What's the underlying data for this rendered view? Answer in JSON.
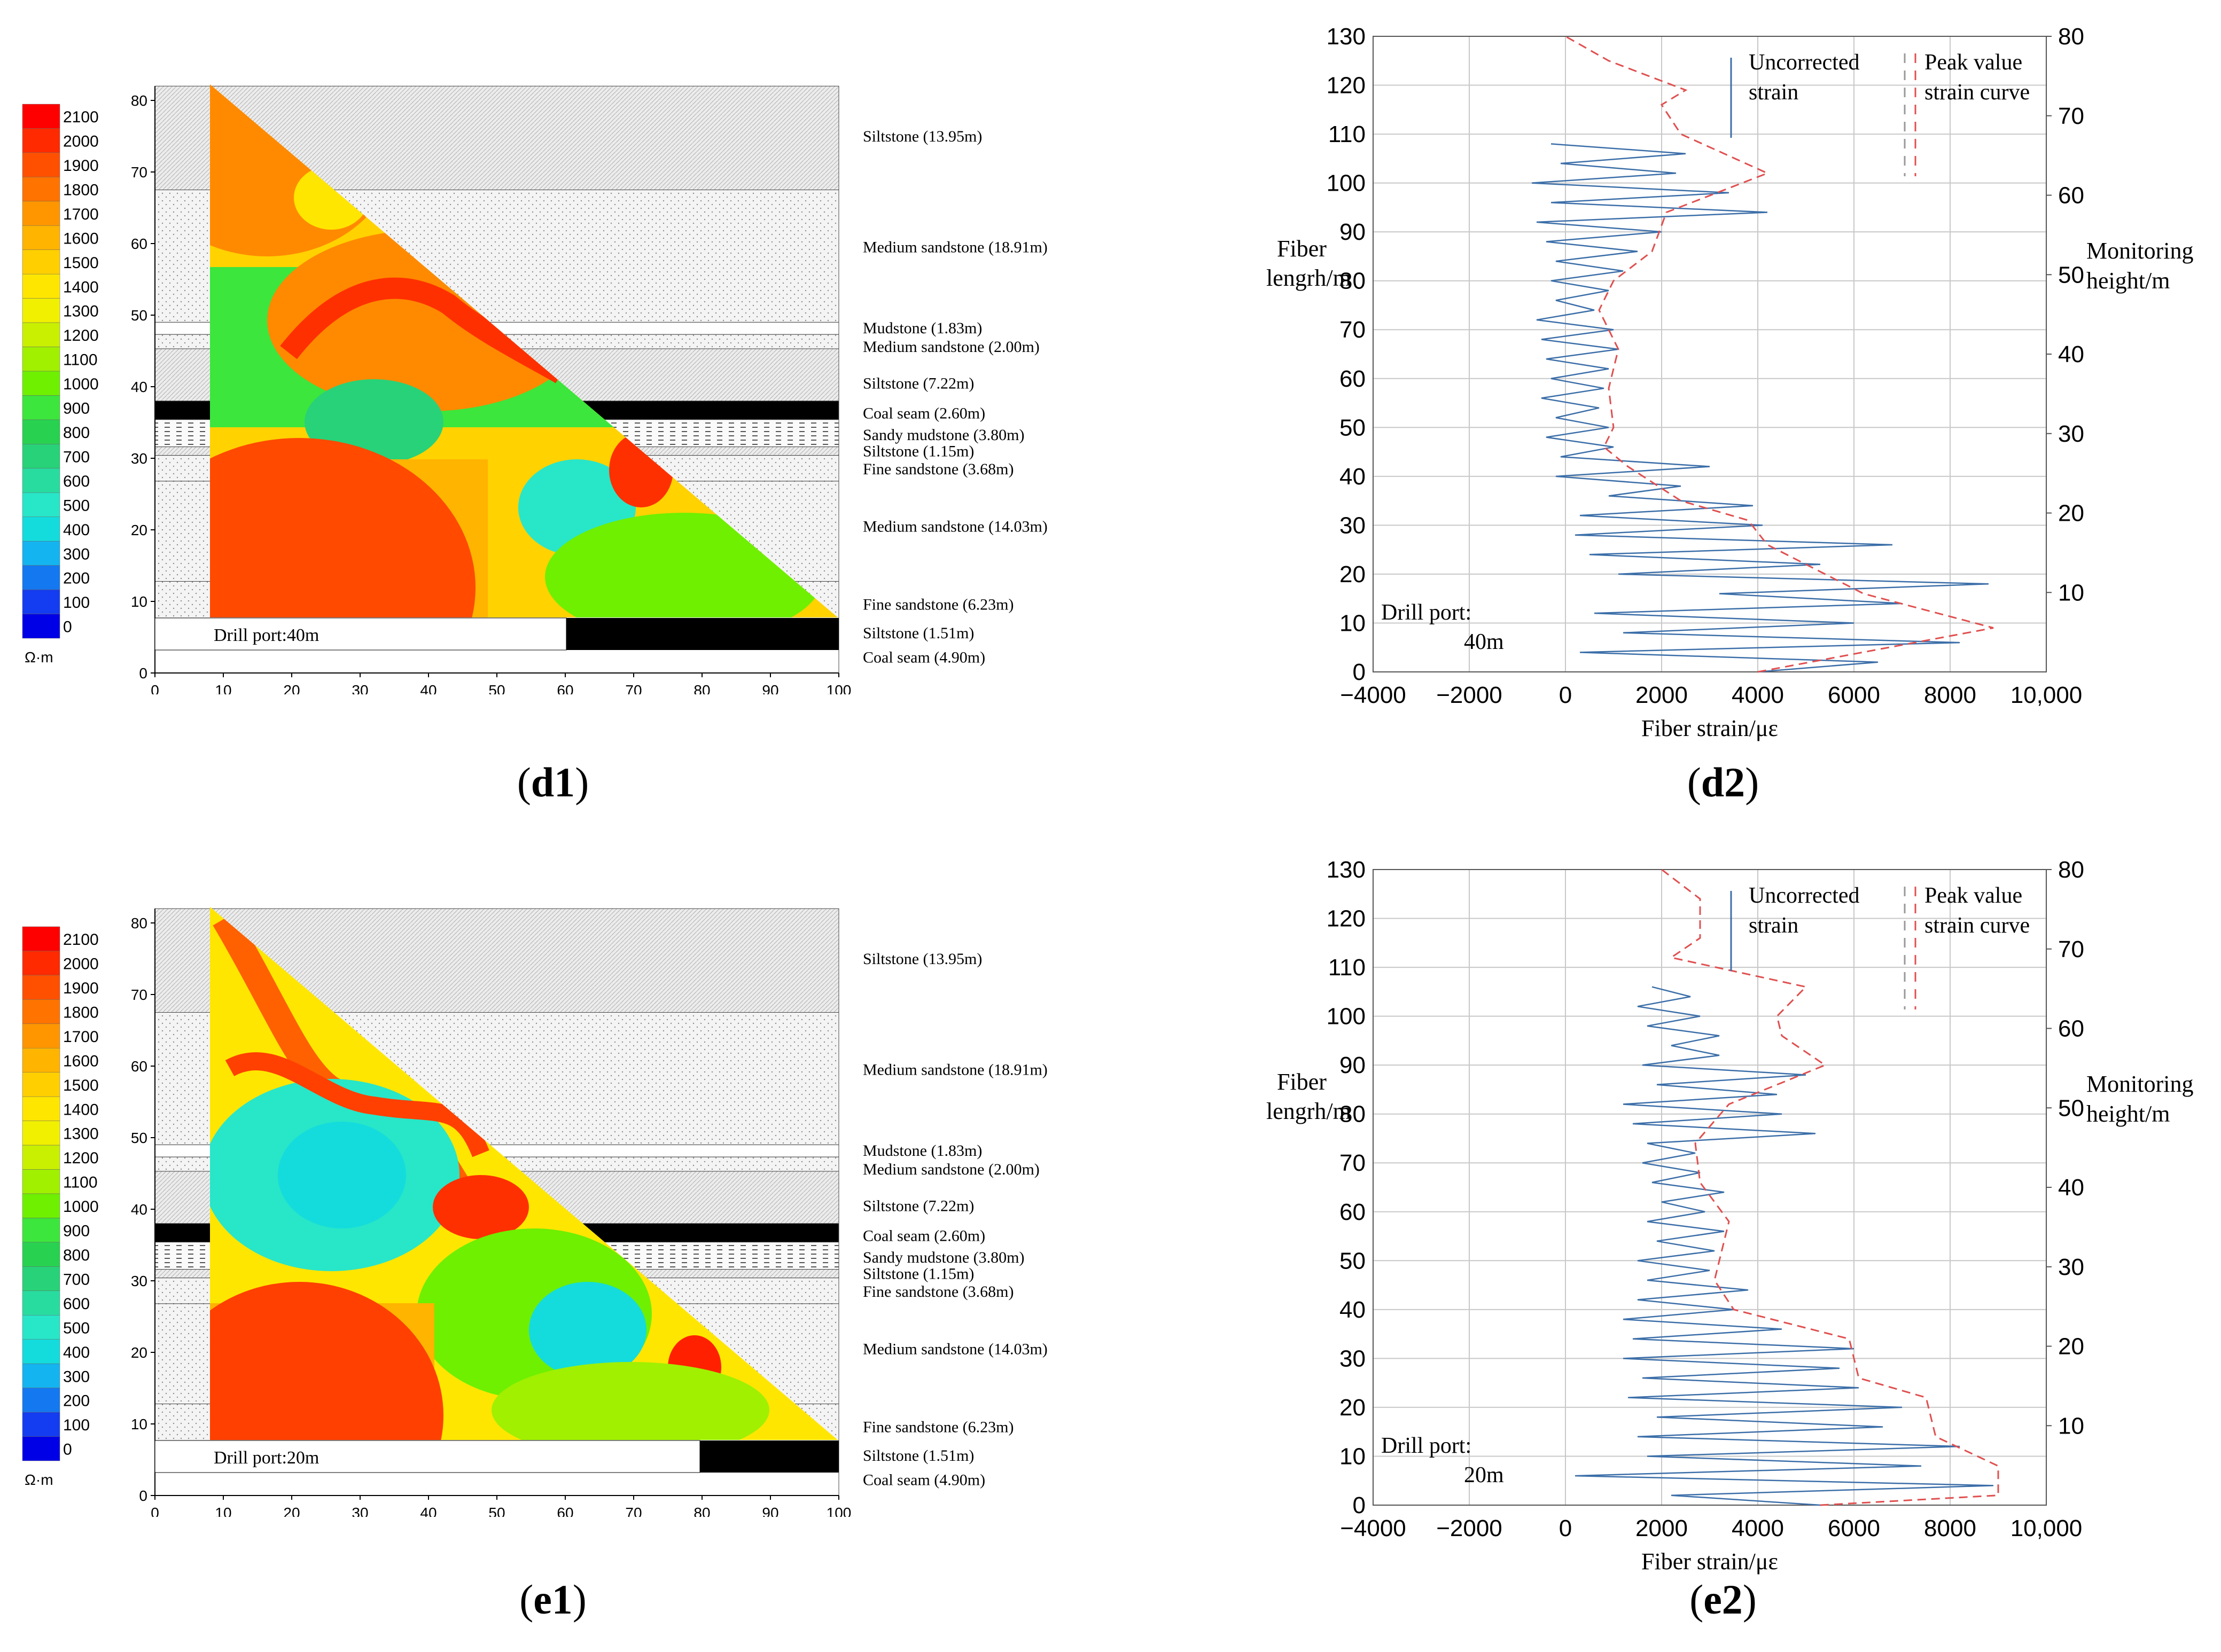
{
  "colors": {
    "strain_line": "#3b6ea8",
    "peak_line": "#e05050",
    "grid": "#c8c8c8",
    "coal": "#000000"
  },
  "captions": {
    "d1": {
      "open": "(",
      "letter": "d1",
      "close": ")"
    },
    "d2": {
      "open": "(",
      "letter": "d2",
      "close": ")"
    },
    "e1": {
      "open": "(",
      "letter": "e1",
      "close": ")"
    },
    "e2": {
      "open": "(",
      "letter": "e2",
      "close": ")"
    }
  },
  "colorbar": {
    "unit": "Ω·m",
    "labels": [
      "2100",
      "2000",
      "1900",
      "1800",
      "1700",
      "1600",
      "1500",
      "1400",
      "1300",
      "1200",
      "1100",
      "1000",
      "900",
      "800",
      "700",
      "600",
      "500",
      "400",
      "300",
      "200",
      "100",
      "0"
    ],
    "colors": [
      "#ff0000",
      "#ff2a00",
      "#ff5000",
      "#ff7300",
      "#ff9600",
      "#ffb400",
      "#ffcf00",
      "#ffe600",
      "#f0f000",
      "#c8f000",
      "#a0f000",
      "#6ef000",
      "#3ce63c",
      "#28d250",
      "#28d278",
      "#28dca0",
      "#28e6c8",
      "#14dcdc",
      "#14b4f0",
      "#1478f0",
      "#143cf0",
      "#0000e6"
    ]
  },
  "section_axes": {
    "x_ticks": [
      "0",
      "10",
      "20",
      "30",
      "40",
      "50",
      "60",
      "70",
      "80",
      "90",
      "100"
    ],
    "y_ticks": [
      "0",
      "10",
      "20",
      "30",
      "40",
      "50",
      "60",
      "70",
      "80"
    ]
  },
  "strata": [
    {
      "label": "Siltstone  (13.95m)"
    },
    {
      "label": "Medium sandstone  (18.91m)"
    },
    {
      "label": "Mudstone  (1.83m)"
    },
    {
      "label": "Medium sandstone  (2.00m)"
    },
    {
      "label": "Siltstone  (7.22m)"
    },
    {
      "label": "Coal seam  (2.60m)"
    },
    {
      "label": "Sandy mudstone  (3.80m)"
    },
    {
      "label": "Siltstone  (1.15m)"
    },
    {
      "label": "Fine sandstone  (3.68m)"
    },
    {
      "label": "Medium sandstone  (14.03m)"
    },
    {
      "label": "Fine sandstone  (6.23m)"
    },
    {
      "label": "Siltstone  (1.51m)"
    },
    {
      "label": "Coal seam  (4.90m)"
    }
  ],
  "d1": {
    "drill_label": "Drill port:40m"
  },
  "e1": {
    "drill_label": "Drill port:20m"
  },
  "strain_axes": {
    "x_ticks": [
      "−4000",
      "−2000",
      "0",
      "2000",
      "4000",
      "6000",
      "8000",
      "10,000"
    ],
    "y_left_ticks": [
      "0",
      "10",
      "20",
      "30",
      "40",
      "50",
      "60",
      "70",
      "80",
      "90",
      "100",
      "110",
      "120",
      "130"
    ],
    "y_right_ticks": [
      "10",
      "20",
      "30",
      "40",
      "50",
      "60",
      "70",
      "80"
    ],
    "xlabel": "Fiber strain/με",
    "ylabel_left_1": "Fiber",
    "ylabel_left_2": "lengrh/m",
    "ylabel_right_1": "Monitoring",
    "ylabel_right_2": "height/m",
    "legend_uncorrected_1": "Uncorrected",
    "legend_uncorrected_2": "strain",
    "legend_peak_1": "Peak value",
    "legend_peak_2": "strain curve"
  },
  "d2": {
    "drill_1": "Drill port:",
    "drill_2": "40m"
  },
  "e2": {
    "drill_1": "Drill port:",
    "drill_2": "20m"
  },
  "chart_data": [
    {
      "type": "line",
      "panel": "d2",
      "title": "",
      "xlabel": "Fiber strain/με",
      "ylabel": "Fiber lengrh/m",
      "y2label": "Monitoring height/m",
      "xlim": [
        -4000,
        10000
      ],
      "ylim": [
        0,
        130
      ],
      "y2lim": [
        0,
        80
      ],
      "series": [
        {
          "name": "Uncorrected strain",
          "x": [
            4000,
            6500,
            300,
            8200,
            1200,
            6000,
            600,
            7000,
            3200,
            8800,
            1100,
            5300,
            500,
            6800,
            200,
            4100,
            300,
            3900,
            900,
            2400,
            -200,
            3000,
            -100,
            1000,
            -400,
            900,
            -200,
            700,
            -500,
            800,
            -300,
            900,
            -400,
            1100,
            -500,
            1000,
            -600,
            600,
            -200,
            900,
            -300,
            1200,
            -200,
            1500,
            -400,
            2000,
            -600,
            4200,
            -300,
            3400,
            -700,
            2300,
            -100,
            2500,
            -300
          ],
          "y": [
            0,
            2,
            4,
            6,
            8,
            10,
            12,
            14,
            16,
            18,
            20,
            22,
            24,
            26,
            28,
            30,
            32,
            34,
            36,
            38,
            40,
            42,
            44,
            46,
            48,
            50,
            52,
            54,
            56,
            58,
            60,
            62,
            64,
            66,
            68,
            70,
            72,
            74,
            76,
            78,
            80,
            82,
            84,
            86,
            88,
            90,
            92,
            94,
            96,
            98,
            100,
            102,
            104,
            106,
            108
          ]
        },
        {
          "name": "Peak value strain curve",
          "x": [
            4000,
            8900,
            6200,
            4200,
            3800,
            2400,
            1300,
            800,
            1000,
            900,
            1100,
            700,
            1000,
            1800,
            2100,
            4200,
            2400,
            2000,
            2500,
            900,
            0
          ],
          "y": [
            0,
            9,
            16,
            26,
            31,
            35,
            42,
            46,
            50,
            58,
            66,
            74,
            80,
            86,
            94,
            102,
            110,
            116,
            119,
            125,
            130
          ]
        }
      ]
    },
    {
      "type": "line",
      "panel": "e2",
      "title": "",
      "xlabel": "Fiber strain/με",
      "ylabel": "Fiber lengrh/m",
      "y2label": "Monitoring height/m",
      "xlim": [
        -4000,
        10000
      ],
      "ylim": [
        0,
        130
      ],
      "y2lim": [
        0,
        80
      ],
      "series": [
        {
          "name": "Uncorrected strain",
          "x": [
            5300,
            2200,
            8900,
            200,
            7400,
            1700,
            8200,
            1500,
            6600,
            1900,
            7000,
            1300,
            6100,
            1600,
            5700,
            1200,
            6000,
            1400,
            4500,
            1200,
            3500,
            1500,
            3800,
            1700,
            3000,
            1500,
            3100,
            1900,
            3300,
            1700,
            2900,
            2000,
            3300,
            1800,
            2800,
            1600,
            2700,
            1700,
            5200,
            1400,
            4500,
            1200,
            4400,
            1900,
            5000,
            1600,
            3200,
            2200,
            3200,
            1700,
            2800,
            1500,
            2600,
            1800
          ],
          "y": [
            0,
            2,
            4,
            6,
            8,
            10,
            12,
            14,
            16,
            18,
            20,
            22,
            24,
            26,
            28,
            30,
            32,
            34,
            36,
            38,
            40,
            42,
            44,
            46,
            48,
            50,
            52,
            54,
            56,
            58,
            60,
            62,
            64,
            66,
            68,
            70,
            72,
            74,
            76,
            78,
            80,
            82,
            84,
            86,
            88,
            90,
            92,
            94,
            96,
            98,
            100,
            102,
            104,
            106
          ]
        },
        {
          "name": "Peak value strain curve",
          "x": [
            5300,
            9000,
            9000,
            7700,
            7500,
            6100,
            5900,
            3500,
            3100,
            3400,
            2800,
            2700,
            3400,
            5400,
            4500,
            4400,
            5000,
            2200,
            2800,
            2800,
            2000
          ],
          "y": [
            0,
            2,
            8,
            14,
            22,
            26,
            34,
            40,
            46,
            58,
            66,
            74,
            82,
            90,
            96,
            100,
            106,
            112,
            116,
            124,
            130
          ]
        }
      ]
    }
  ]
}
